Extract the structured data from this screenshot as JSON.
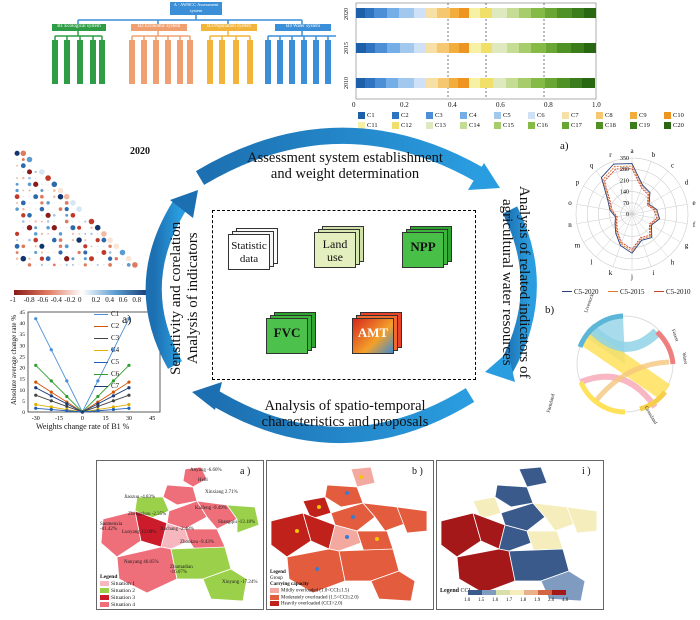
{
  "tree": {
    "root": "A - AWRCC Assessment system",
    "branches": [
      {
        "label": "B1 Ecological system",
        "color": "#2e9d46"
      },
      {
        "label": "B2 Economic system",
        "color": "#f0a070"
      },
      {
        "label": "B3 Population system",
        "color": "#f2b43a"
      },
      {
        "label": "B4 Water system",
        "color": "#3b8fd8"
      }
    ]
  },
  "bar_chart": {
    "years": [
      "2020",
      "2015",
      "2010"
    ],
    "x_ticks": [
      "0",
      "0.2",
      "0.4",
      "0.6",
      "0.8",
      "1.0"
    ],
    "legend": [
      "C1",
      "C2",
      "C3",
      "C4",
      "C5",
      "C6",
      "C7",
      "C8",
      "C9",
      "C10",
      "C11",
      "C12",
      "C13",
      "C14",
      "C15",
      "C16",
      "C17",
      "C18",
      "C19",
      "C20"
    ],
    "colors": [
      "#1d5fa8",
      "#2f74c0",
      "#4c8fd6",
      "#74aee6",
      "#a3c8ee",
      "#cfe1f6",
      "#f7e0a6",
      "#f4c770",
      "#f2ad3c",
      "#ee9420",
      "#f7f1a6",
      "#f0e06a",
      "#dfe9bf",
      "#c4dc93",
      "#a6cc6b",
      "#86ba47",
      "#6aa634",
      "#4f9125",
      "#3b7d1c",
      "#2a6713"
    ],
    "weights": [
      0.04,
      0.04,
      0.05,
      0.05,
      0.06,
      0.05,
      0.05,
      0.05,
      0.04,
      0.04,
      0.05,
      0.05,
      0.06,
      0.05,
      0.05,
      0.06,
      0.05,
      0.06,
      0.05,
      0.05
    ]
  },
  "center": {
    "top": "Assessment system establishment\nand weight determination",
    "bottom": "Analysis of spatio-temporal\ncharacteristics and proposals",
    "left": "Sensitivity and corelation\nAnalysis of indicators",
    "right": "Analysis of related indicators of\nagricultural water resources",
    "tiles": [
      "Statistic data",
      "Land use",
      "NPP",
      "FVC",
      "AMT"
    ]
  },
  "heatmap": {
    "title": "2020",
    "scale": [
      "-1",
      "-0.8",
      "-0.6",
      "-0.4",
      "-0.2",
      "0",
      "0.2",
      "0.4",
      "0.6",
      "0.8",
      "1"
    ]
  },
  "line_chart": {
    "panel_label": "a)",
    "xlabel": "Weights change rate of B1 %",
    "ylabel": "Absolute average change rate %",
    "x_ticks": [
      "-30",
      "-15",
      "0",
      "15",
      "30",
      "45"
    ],
    "y_ticks": [
      "0",
      "5",
      "10",
      "15",
      "20",
      "25",
      "30",
      "35",
      "40",
      "45"
    ],
    "series": [
      "C1",
      "C2",
      "C3",
      "C4",
      "C5",
      "C6",
      "C7"
    ],
    "colors": [
      "#4a90d9",
      "#d35400",
      "#444444",
      "#e0b000",
      "#1f5fbf",
      "#2e9d2e",
      "#1a3a7a"
    ],
    "slopes": [
      1.0,
      0.32,
      0.18,
      0.08,
      0.04,
      0.5,
      0.26
    ]
  },
  "radar": {
    "panel_label": "a)",
    "axes": [
      "a",
      "b",
      "c",
      "d",
      "e",
      "f",
      "g",
      "h",
      "i",
      "j",
      "k",
      "l",
      "m",
      "n",
      "o",
      "p",
      "q",
      "r"
    ],
    "r_ticks": [
      "0",
      "70",
      "140",
      "210",
      "280",
      "350"
    ],
    "legend": [
      "C5-2020",
      "C5-2015",
      "C5-2010"
    ],
    "colors": [
      "#2a3f7a",
      "#e07a30",
      "#c8422d"
    ]
  },
  "chord": {
    "panel_label": "b)",
    "labels": [
      "Livestock",
      "Forest",
      "Water",
      "Farmland",
      "Grassland"
    ]
  },
  "maps": [
    {
      "panel_label": "a )",
      "legend_title": "Legend",
      "legend": [
        {
          "label": "Situation 1",
          "color": "#f7b7bf"
        },
        {
          "label": "Situation 2",
          "color": "#9bd14a"
        },
        {
          "label": "Situation 3",
          "color": "#cc1b2b"
        },
        {
          "label": "Situation 4",
          "color": "#ee6f7a"
        }
      ],
      "cities": [
        {
          "name": "Anyang -6.60%",
          "c": "#ee6f7a"
        },
        {
          "name": "Hebi",
          "c": "#ee6f7a"
        },
        {
          "name": "Xinxiang 2.71%",
          "c": "#ee6f7a"
        },
        {
          "name": "Jiaozuo -4.83%",
          "c": "#9bd14a"
        },
        {
          "name": "Zhengzhou -2.35%",
          "c": "#ee6f7a"
        },
        {
          "name": "Kaifeng -9.49%",
          "c": "#ee6f7a"
        },
        {
          "name": "Shangqiu -13.18%",
          "c": "#9bd14a"
        },
        {
          "name": "Sanmenxia -81.42%",
          "c": "#ee6f7a"
        },
        {
          "name": "Luoyang 12.08%",
          "c": "#cc1b2b"
        },
        {
          "name": "Xuchang -2.48%",
          "c": "#ee6f7a"
        },
        {
          "name": "Zhoukou -9.43%",
          "c": "#ee6f7a"
        },
        {
          "name": "Nanyang 46.05%",
          "c": "#ee6f7a"
        },
        {
          "name": "Zhumadian -16.07%",
          "c": "#9bd14a"
        },
        {
          "name": "Xinyang -17.24%",
          "c": "#9bd14a"
        }
      ]
    },
    {
      "panel_label": "b )",
      "legend_title": "Legend",
      "legend_sub": "Group",
      "legend_sub2": "Carrying capacity",
      "legend": [
        {
          "label": "Mildly overloaded (1.0<CCI≤1.5)",
          "color": "#f3a9a0"
        },
        {
          "label": "Moderately overloaded (1.5<CCI≤2.0)",
          "color": "#e35c3e"
        },
        {
          "label": "Heavily overloaded (CCI>2.0)",
          "color": "#c0211a"
        }
      ]
    },
    {
      "panel_label": "i )",
      "legend_title": "Legend",
      "legend_sub": "CCI",
      "scale": [
        "1.0",
        "1.5",
        "1.6",
        "1.7",
        "1.8",
        "1.9",
        "2.0",
        "4.0"
      ],
      "colors": [
        "#3a5a8c",
        "#7f9cc0",
        "#d8dfa8",
        "#f5eebc",
        "#eab08a",
        "#d46542",
        "#a5181a"
      ]
    }
  ]
}
